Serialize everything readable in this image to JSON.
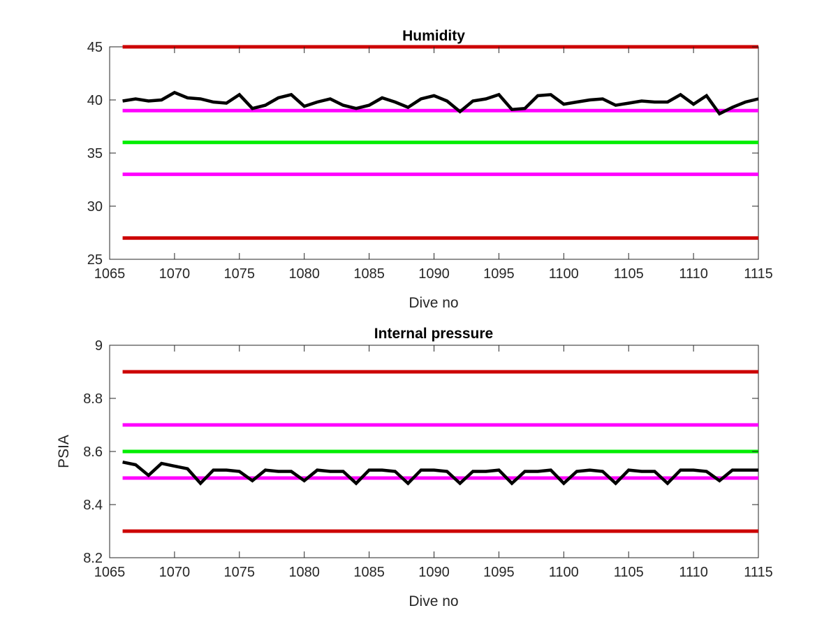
{
  "chart_data": [
    {
      "type": "line",
      "title": "Humidity",
      "xlabel": "Dive no",
      "ylabel": "",
      "xlim": [
        1065,
        1115
      ],
      "ylim": [
        25,
        45
      ],
      "xticks": [
        1065,
        1070,
        1075,
        1080,
        1085,
        1090,
        1095,
        1100,
        1105,
        1110,
        1115
      ],
      "yticks": [
        25,
        30,
        35,
        40,
        45
      ],
      "grid": false,
      "thresholds": [
        {
          "value": 45,
          "color": "#cc0000"
        },
        {
          "value": 39,
          "color": "#ff00ff"
        },
        {
          "value": 36,
          "color": "#00ee00"
        },
        {
          "value": 33,
          "color": "#ff00ff"
        },
        {
          "value": 27,
          "color": "#cc0000"
        }
      ],
      "series": [
        {
          "color": "#000000",
          "x": [
            1066,
            1067,
            1068,
            1069,
            1070,
            1071,
            1072,
            1073,
            1074,
            1075,
            1076,
            1077,
            1078,
            1079,
            1080,
            1081,
            1082,
            1083,
            1084,
            1085,
            1086,
            1087,
            1088,
            1089,
            1090,
            1091,
            1092,
            1093,
            1094,
            1095,
            1096,
            1097,
            1098,
            1099,
            1100,
            1101,
            1102,
            1103,
            1104,
            1105,
            1106,
            1107,
            1108,
            1109,
            1110,
            1111,
            1112,
            1113,
            1114,
            1115
          ],
          "y": [
            39.9,
            40.1,
            39.9,
            40.0,
            40.7,
            40.2,
            40.1,
            39.8,
            39.7,
            40.5,
            39.2,
            39.5,
            40.2,
            40.5,
            39.4,
            39.8,
            40.1,
            39.5,
            39.2,
            39.5,
            40.2,
            39.8,
            39.3,
            40.1,
            40.4,
            39.9,
            38.9,
            39.9,
            40.1,
            40.5,
            39.1,
            39.2,
            40.4,
            40.5,
            39.6,
            39.8,
            40.0,
            40.1,
            39.5,
            39.7,
            39.9,
            39.8,
            39.8,
            40.5,
            39.6,
            40.4,
            38.7,
            39.3,
            39.8,
            40.1
          ]
        }
      ]
    },
    {
      "type": "line",
      "title": "Internal pressure",
      "xlabel": "Dive no",
      "ylabel": "PSIA",
      "xlim": [
        1065,
        1115
      ],
      "ylim": [
        8.2,
        9
      ],
      "xticks": [
        1065,
        1070,
        1075,
        1080,
        1085,
        1090,
        1095,
        1100,
        1105,
        1110,
        1115
      ],
      "yticks": [
        8.2,
        8.4,
        8.6,
        8.8,
        9
      ],
      "grid": false,
      "thresholds": [
        {
          "value": 8.9,
          "color": "#cc0000"
        },
        {
          "value": 8.7,
          "color": "#ff00ff"
        },
        {
          "value": 8.6,
          "color": "#00ee00"
        },
        {
          "value": 8.5,
          "color": "#ff00ff"
        },
        {
          "value": 8.3,
          "color": "#cc0000"
        }
      ],
      "series": [
        {
          "color": "#000000",
          "x": [
            1066,
            1067,
            1068,
            1069,
            1070,
            1071,
            1072,
            1073,
            1074,
            1075,
            1076,
            1077,
            1078,
            1079,
            1080,
            1081,
            1082,
            1083,
            1084,
            1085,
            1086,
            1087,
            1088,
            1089,
            1090,
            1091,
            1092,
            1093,
            1094,
            1095,
            1096,
            1097,
            1098,
            1099,
            1100,
            1101,
            1102,
            1103,
            1104,
            1105,
            1106,
            1107,
            1108,
            1109,
            1110,
            1111,
            1112,
            1113,
            1114,
            1115
          ],
          "y": [
            8.56,
            8.55,
            8.51,
            8.555,
            8.545,
            8.535,
            8.48,
            8.53,
            8.53,
            8.525,
            8.49,
            8.53,
            8.525,
            8.525,
            8.49,
            8.53,
            8.525,
            8.525,
            8.48,
            8.53,
            8.53,
            8.525,
            8.48,
            8.53,
            8.53,
            8.525,
            8.48,
            8.525,
            8.525,
            8.53,
            8.48,
            8.525,
            8.525,
            8.53,
            8.48,
            8.525,
            8.53,
            8.525,
            8.48,
            8.53,
            8.525,
            8.525,
            8.48,
            8.53,
            8.53,
            8.525,
            8.49,
            8.53,
            8.53,
            8.53
          ]
        }
      ]
    }
  ]
}
